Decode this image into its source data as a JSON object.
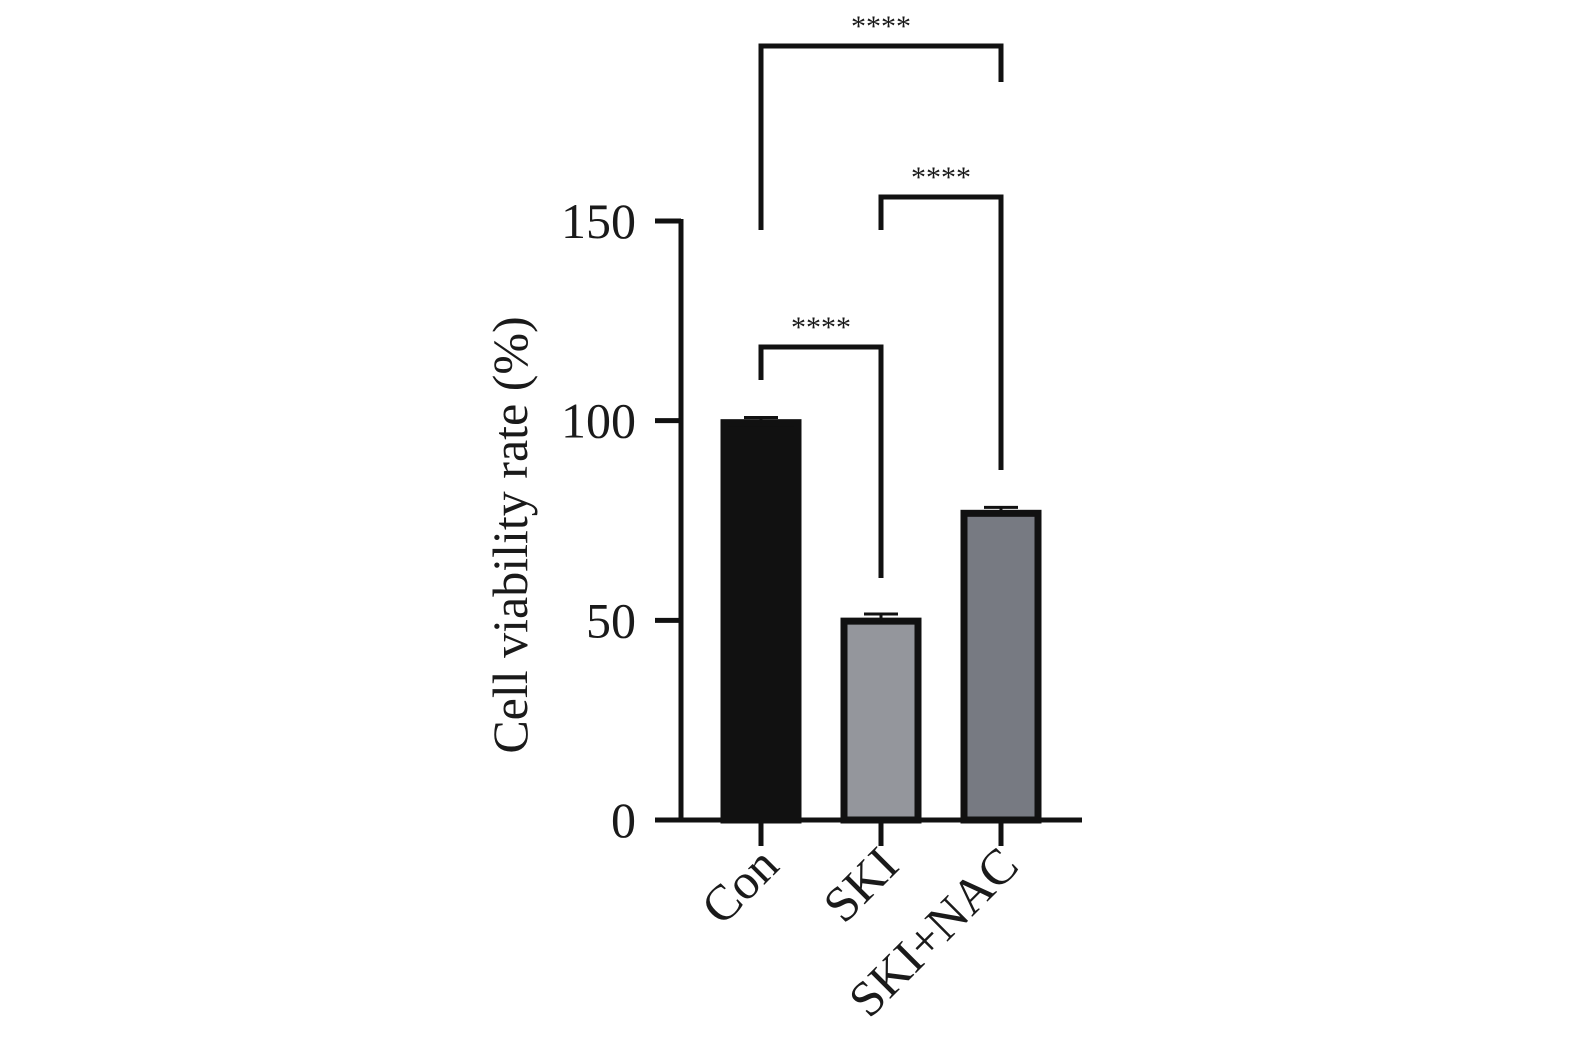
{
  "chart_data": {
    "type": "bar",
    "categories": [
      "Con",
      "SKI",
      "SKI+NAC"
    ],
    "values": [
      99.5,
      49.8,
      76.8
    ],
    "errors": [
      1.3,
      1.8,
      1.5
    ],
    "ylabel": "Cell viability rate (%)",
    "xlabel": "",
    "title": "",
    "ylim": [
      0,
      150
    ],
    "yticks": [
      0,
      50,
      100,
      150
    ],
    "grid": false,
    "colors": [
      "#111111",
      "#94969c",
      "#777a82"
    ],
    "edge_color": "#111111",
    "significance": [
      {
        "from": 0,
        "to": 1,
        "label": "****"
      },
      {
        "from": 1,
        "to": 2,
        "label": "****"
      },
      {
        "from": 0,
        "to": 2,
        "label": "****"
      }
    ]
  }
}
